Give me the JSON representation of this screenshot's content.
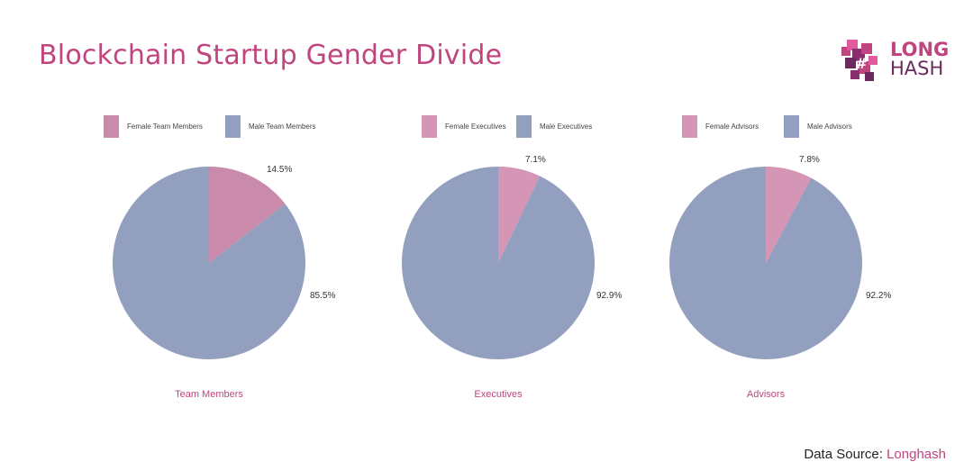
{
  "title": "Blockchain Startup Gender Divide",
  "logo": {
    "line1": "LONG",
    "line2": "HASH",
    "colors": [
      "#c0457f",
      "#6b2a5e",
      "#e05aa0"
    ]
  },
  "source": {
    "label": "Data Source:",
    "name": "Longhash"
  },
  "colors": {
    "female": "#d596b5",
    "female_team": "#c98aac",
    "male": "#939fbf"
  },
  "chart_data": [
    {
      "type": "pie",
      "title": "Team Members",
      "legend": [
        "Female Team Members",
        "Male Team Members"
      ],
      "values": [
        14.5,
        85.5
      ],
      "labels": [
        "14.5%",
        "85.5%"
      ]
    },
    {
      "type": "pie",
      "title": "Executives",
      "legend": [
        "Female Executives",
        "Male Executives"
      ],
      "values": [
        7.1,
        92.9
      ],
      "labels": [
        "7.1%",
        "92.9%"
      ]
    },
    {
      "type": "pie",
      "title": "Advisors",
      "legend": [
        "Female Advisors",
        "Male Advisors"
      ],
      "values": [
        7.8,
        92.2
      ],
      "labels": [
        "7.8%",
        "92.2%"
      ]
    }
  ]
}
